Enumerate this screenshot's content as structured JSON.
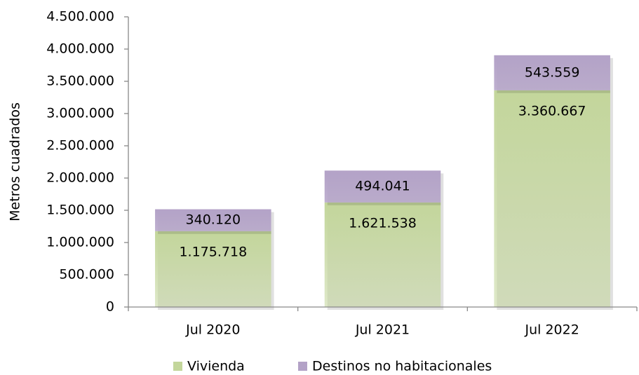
{
  "chart_data": {
    "type": "stacked-bar",
    "y_label": "Metros cuadrados",
    "categories": [
      "Jul 2020",
      "Jul 2021",
      "Jul 2022"
    ],
    "series": [
      {
        "name": "Vivienda",
        "color": "#c3d69b",
        "values": [
          1175718,
          1621538,
          3360667
        ],
        "value_labels": [
          "1.175.718",
          "1.621.538",
          "3.360.667"
        ]
      },
      {
        "name": "Destinos no habitacionales",
        "color": "#b3a2c7",
        "values": [
          340120,
          494041,
          543559
        ],
        "value_labels": [
          "340.120",
          "494.041",
          "543.559"
        ]
      }
    ],
    "ylim": [
      0,
      4500000
    ],
    "yticks": [
      0,
      {
        "value": 500000,
        "label": "500.000"
      },
      {
        "value": 1000000,
        "label": "1.000.000"
      },
      {
        "value": 1500000,
        "label": "1.500.000"
      },
      {
        "value": 2000000,
        "label": "2.000.000"
      },
      {
        "value": 2500000,
        "label": "2.500.000"
      },
      {
        "value": 3000000,
        "label": "3.000.000"
      },
      {
        "value": 3500000,
        "label": "3.500.000"
      },
      {
        "value": 4000000,
        "label": "4.000.000"
      },
      {
        "value": 4500000,
        "label": "4.500.000"
      }
    ],
    "legend": "bottom"
  }
}
